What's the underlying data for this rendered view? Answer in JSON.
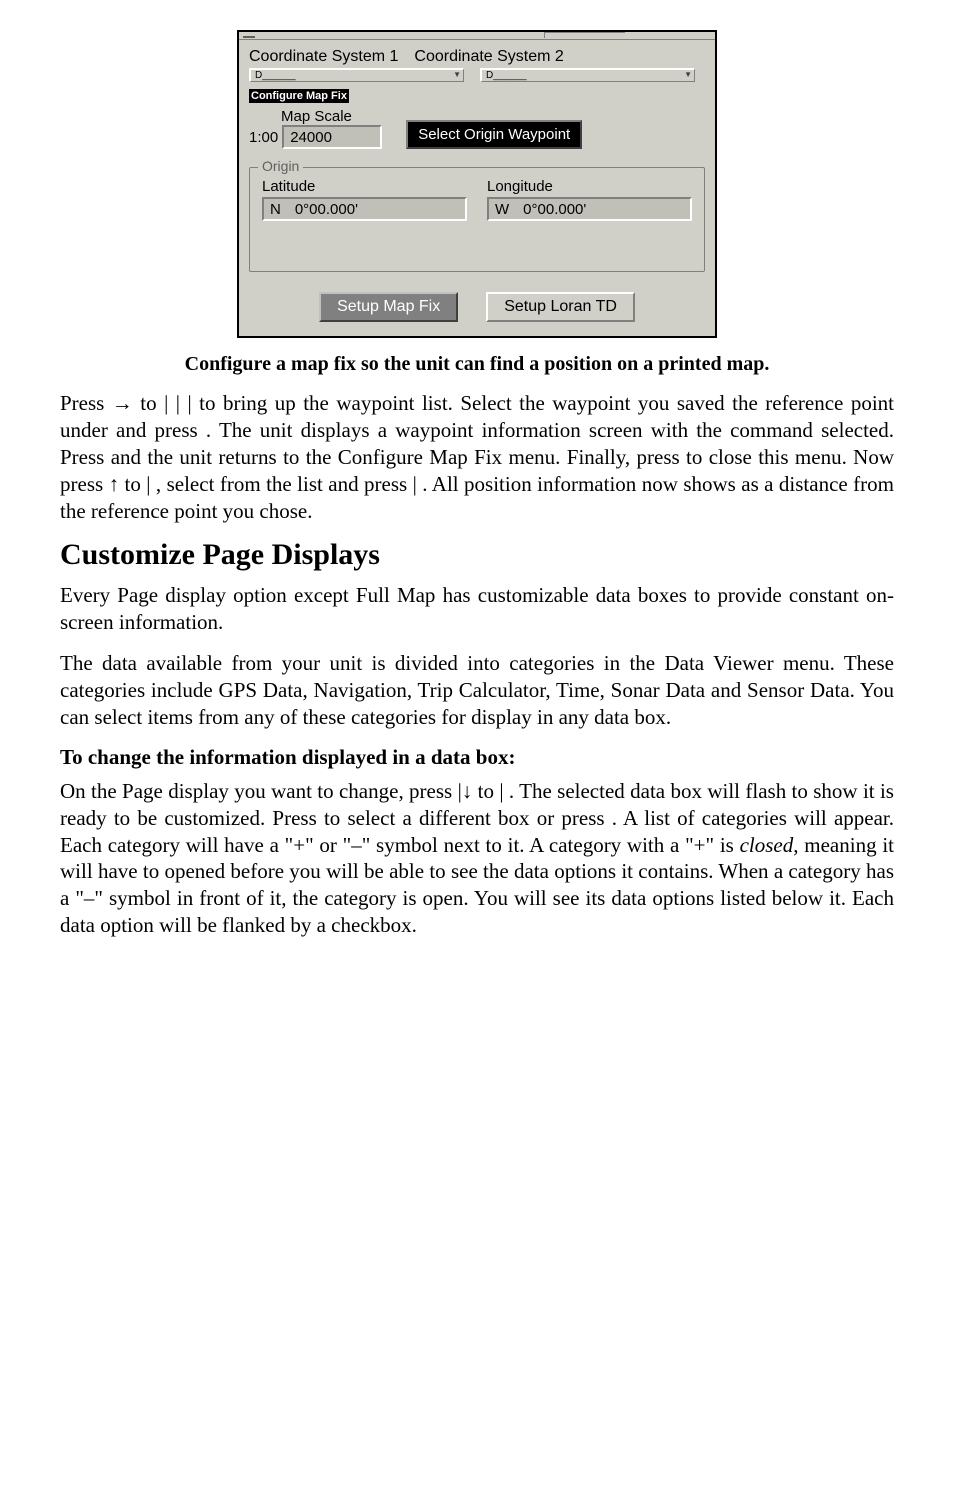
{
  "figure": {
    "tab1": "Coordinate System 1",
    "tab2": "Coordinate System 2",
    "tab1_inner": "D______",
    "tab2_inner": "D______",
    "section_title": "Configure Map Fix",
    "map_scale_label": "Map Scale",
    "scale_prefix": "1:00",
    "scale_value": "24000",
    "select_origin_btn": "Select Origin Waypoint",
    "origin_legend": "Origin",
    "latitude_label": "Latitude",
    "latitude_hemi": "N",
    "latitude_val": "0°00.000'",
    "longitude_label": "Longitude",
    "longitude_hemi": "W",
    "longitude_val": "0°00.000'",
    "setup_map_fix": "Setup Map Fix",
    "setup_loran": "Setup Loran TD"
  },
  "caption": "Configure a map fix so the unit can find a position on a printed map.",
  "p1a": "Press → to ",
  "p1b": " | ",
  "p1c": " | ",
  "p1d": " | ",
  "p1e": " to bring up the waypoint list. Select the waypoint you saved the reference point under and press ",
  "p1f": ". The unit displays a waypoint information screen with the command ",
  "p1g": " selected. Press ",
  "p1h": " and the unit returns to the Configure Map Fix menu. Finally, press ",
  "p1i": " to close this menu. Now press ↑ to ",
  "p1j": " | ",
  "p1k": ", select ",
  "p1l": " from the list and press ",
  "p1m": " | ",
  "p1n": ". All position information now shows as a distance from the reference point you chose.",
  "h1": "Customize Page Displays",
  "p2": "Every Page display option except Full Map has customizable data boxes to provide constant on-screen information.",
  "p3": "The data available from your unit is divided into categories in the Data Viewer menu. These categories include GPS Data, Navigation, Trip Calculator, Time, Sonar Data and Sensor Data. You can select items from any of these categories for display in any data box.",
  "h2": "To change the information displayed in a data box:",
  "p4a": "On the Page display you want to change, press ",
  "p4b": " |↓ to ",
  "p4c": " | ",
  "p4d": ". The selected data box will flash to show it is ready to be customized. Press ",
  "p4e": " to select a different box or press ",
  "p4f": ". A list of categories will appear. Each category will have a \"+\" or \"–\" symbol next to it. A category with a \"+\" is ",
  "p4g": "closed",
  "p4h": ", meaning it will have to opened before you will be able to see the data options it contains. When a category has a \"–\" symbol in front of it, the category is open. You will see its data options listed below it. Each data option will be flanked by a checkbox."
}
